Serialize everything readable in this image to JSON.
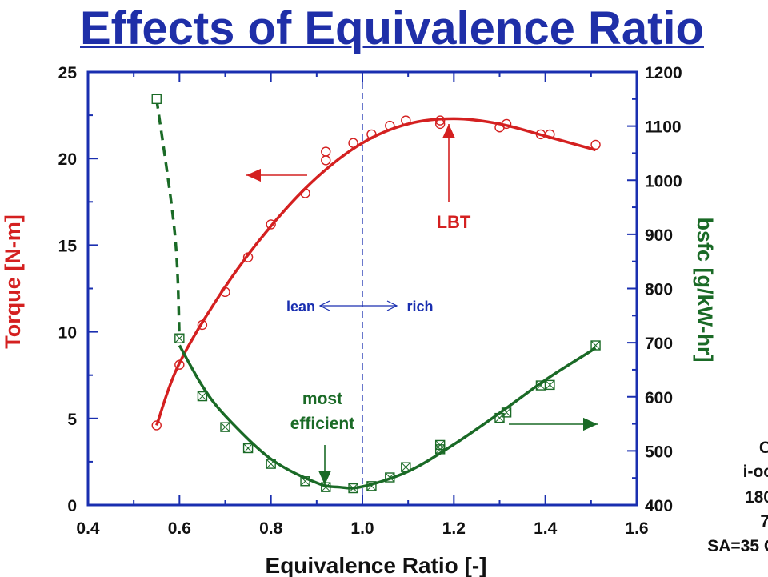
{
  "title": "Effects of Equivalence Ratio",
  "side_notes": [
    "C",
    "i-oc",
    "180",
    "7",
    "SA=35 C"
  ],
  "colors": {
    "title": "#1f2fa8",
    "axis": "#1a2fb0",
    "torque": "#d42020",
    "bsfc": "#1a6a26"
  },
  "chart_data": {
    "type": "scatter",
    "xlabel": "Equivalence Ratio [-]",
    "ylabel_left": "Torque [N-m]",
    "ylabel_right": "bsfc [g/kW-hr]",
    "xlim": [
      0.4,
      1.6
    ],
    "ylim_left": [
      0,
      25
    ],
    "ylim_right": [
      400,
      1200
    ],
    "x_ticks": [
      "0.4",
      "0.6",
      "0.8",
      "1.0",
      "1.2",
      "1.4",
      "1.6"
    ],
    "y_left_ticks": [
      "0",
      "5",
      "10",
      "15",
      "20",
      "25"
    ],
    "y_right_ticks": [
      "400",
      "500",
      "600",
      "700",
      "800",
      "900",
      "1000",
      "1100",
      "1200"
    ],
    "series": [
      {
        "axis": "left",
        "marker": "circle",
        "points": [
          [
            0.55,
            4.6
          ],
          [
            0.6,
            8.1
          ],
          [
            0.65,
            10.4
          ],
          [
            0.7,
            12.3
          ],
          [
            0.75,
            14.3
          ],
          [
            0.8,
            16.2
          ],
          [
            0.875,
            18.0
          ],
          [
            0.92,
            19.9
          ],
          [
            0.92,
            20.4
          ],
          [
            0.98,
            20.9
          ],
          [
            1.02,
            21.4
          ],
          [
            1.06,
            21.9
          ],
          [
            1.095,
            22.2
          ],
          [
            1.17,
            22.0
          ],
          [
            1.17,
            22.2
          ],
          [
            1.3,
            21.8
          ],
          [
            1.315,
            22.0
          ],
          [
            1.39,
            21.4
          ],
          [
            1.41,
            21.4
          ],
          [
            1.51,
            20.8
          ]
        ],
        "fit": [
          [
            0.55,
            4.6
          ],
          [
            0.6,
            8.2
          ],
          [
            0.7,
            12.6
          ],
          [
            0.8,
            16.1
          ],
          [
            0.9,
            18.9
          ],
          [
            1.0,
            20.9
          ],
          [
            1.1,
            22.0
          ],
          [
            1.2,
            22.3
          ],
          [
            1.3,
            22.0
          ],
          [
            1.4,
            21.3
          ],
          [
            1.51,
            20.5
          ]
        ]
      },
      {
        "axis": "right",
        "marker": "square-x",
        "points": [
          [
            0.6,
            708
          ],
          [
            0.65,
            601
          ],
          [
            0.7,
            544
          ],
          [
            0.75,
            505
          ],
          [
            0.8,
            476
          ],
          [
            0.875,
            444
          ],
          [
            0.92,
            433
          ],
          [
            0.98,
            431
          ],
          [
            1.02,
            435
          ],
          [
            1.06,
            451
          ],
          [
            1.095,
            470
          ],
          [
            1.17,
            503
          ],
          [
            1.17,
            511
          ],
          [
            1.3,
            561
          ],
          [
            1.315,
            571
          ],
          [
            1.39,
            621
          ],
          [
            1.41,
            622
          ],
          [
            1.51,
            695
          ]
        ],
        "fit": [
          [
            0.6,
            695
          ],
          [
            0.65,
            620
          ],
          [
            0.7,
            565
          ],
          [
            0.8,
            485
          ],
          [
            0.9,
            441
          ],
          [
            0.95,
            433
          ],
          [
            1.0,
            434
          ],
          [
            1.1,
            462
          ],
          [
            1.2,
            512
          ],
          [
            1.3,
            570
          ],
          [
            1.4,
            631
          ],
          [
            1.51,
            690
          ]
        ],
        "dashed": [
          [
            0.55,
            1150
          ],
          [
            0.59,
            900
          ],
          [
            0.6,
            708
          ]
        ]
      }
    ],
    "divider_x": 1.0,
    "annotations": {
      "lbt": "LBT",
      "lean": "lean",
      "rich": "rich",
      "most": "most",
      "efficient": "efficient"
    }
  }
}
